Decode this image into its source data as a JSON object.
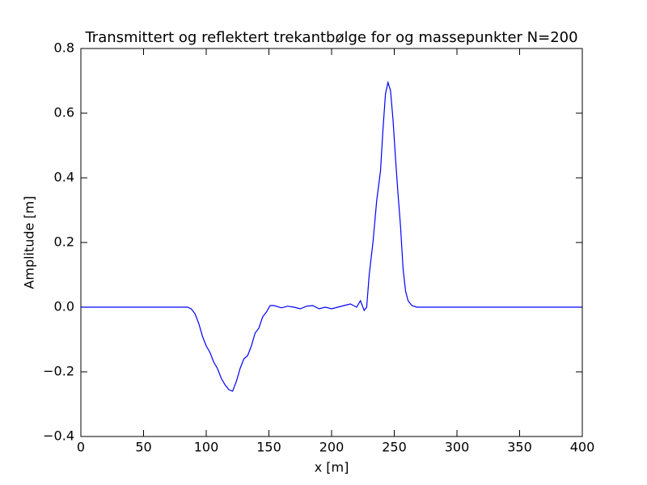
{
  "chart_data": {
    "type": "line",
    "title": "Transmittert og reflektert trekantbølge for og massepunkter N=200",
    "xlabel": "x [m]",
    "ylabel": "Amplitude [m]",
    "x": [
      0,
      20,
      40,
      60,
      80,
      85,
      88,
      91,
      94,
      97,
      100,
      103,
      106,
      109,
      112,
      115,
      118,
      121,
      124,
      127,
      130,
      133,
      136,
      139,
      142,
      145,
      148,
      151,
      154,
      160,
      165,
      170,
      175,
      180,
      185,
      190,
      195,
      200,
      205,
      210,
      215,
      220,
      223,
      226,
      228,
      230,
      233,
      236,
      239,
      241,
      243,
      245,
      247,
      249,
      251,
      253,
      255,
      257,
      259,
      261,
      264,
      268,
      300,
      350,
      400
    ],
    "series": [
      {
        "name": "Amplitude",
        "color": "#0000ff",
        "values": [
          0,
          0,
          0,
          0,
          0,
          0,
          -0.005,
          -0.02,
          -0.05,
          -0.09,
          -0.12,
          -0.14,
          -0.17,
          -0.19,
          -0.22,
          -0.24,
          -0.255,
          -0.26,
          -0.23,
          -0.19,
          -0.16,
          -0.15,
          -0.12,
          -0.08,
          -0.065,
          -0.03,
          -0.015,
          0.005,
          0.005,
          -0.002,
          0.003,
          0,
          -0.005,
          0.003,
          0.005,
          -0.005,
          0,
          -0.005,
          0,
          0.005,
          0.01,
          0,
          0.02,
          -0.01,
          0,
          0.1,
          0.2,
          0.33,
          0.42,
          0.55,
          0.66,
          0.695,
          0.67,
          0.58,
          0.46,
          0.35,
          0.25,
          0.12,
          0.05,
          0.02,
          0.005,
          0,
          0,
          0,
          0
        ]
      }
    ],
    "xlim": [
      0,
      400
    ],
    "xticks": [
      0,
      50,
      100,
      150,
      200,
      250,
      300,
      350,
      400
    ],
    "ylim": [
      -0.4,
      0.8
    ],
    "yticks": [
      {
        "value": -0.4,
        "label": "−0.4"
      },
      {
        "value": -0.2,
        "label": "−0.2"
      },
      {
        "value": 0,
        "label": "0.0"
      },
      {
        "value": 0.2,
        "label": "0.2"
      },
      {
        "value": 0.4,
        "label": "0.4"
      },
      {
        "value": 0.6,
        "label": "0.6"
      },
      {
        "value": 0.8,
        "label": "0.8"
      }
    ],
    "grid": false
  }
}
